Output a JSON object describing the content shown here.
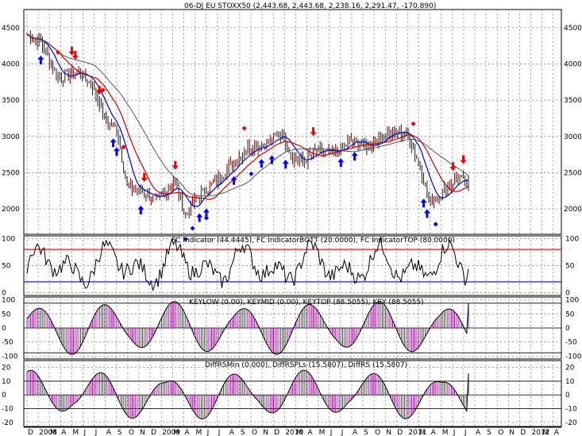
{
  "chart_data": [
    {
      "type": "candlestick",
      "title": "06-DJ EU STOXX50 (2,443.68, 2,443.68, 2,238.16, 2,291.47, -170.890)",
      "yticks": [
        2000,
        2500,
        3000,
        3500,
        4000,
        4500
      ],
      "ylim": [
        1650,
        4750
      ],
      "price_path": [
        [
          0,
          4400
        ],
        [
          8,
          4300
        ],
        [
          18,
          3800
        ],
        [
          30,
          3900
        ],
        [
          38,
          3700
        ],
        [
          46,
          3200
        ],
        [
          52,
          3100
        ],
        [
          58,
          2300
        ],
        [
          66,
          2250
        ],
        [
          76,
          2100
        ],
        [
          85,
          2400
        ],
        [
          92,
          1900
        ],
        [
          98,
          2150
        ],
        [
          108,
          2350
        ],
        [
          118,
          2600
        ],
        [
          128,
          2850
        ],
        [
          138,
          2900
        ],
        [
          148,
          3050
        ],
        [
          154,
          2700
        ],
        [
          160,
          2650
        ],
        [
          168,
          2800
        ],
        [
          178,
          2750
        ],
        [
          188,
          2950
        ],
        [
          198,
          2850
        ],
        [
          208,
          3050
        ],
        [
          220,
          3050
        ],
        [
          228,
          2600
        ],
        [
          233,
          2100
        ],
        [
          240,
          2200
        ],
        [
          250,
          2450
        ],
        [
          256,
          2290
        ]
      ],
      "signals": {
        "up_arrows": [
          8,
          50,
          52,
          66,
          100,
          104,
          120,
          136,
          142,
          150,
          182,
          190,
          230,
          232
        ],
        "down_arrows": [
          26,
          28,
          42,
          68,
          86,
          166,
          247,
          253
        ],
        "up_diamonds": [
          92,
          96,
          104,
          130,
          237
        ],
        "down_diamonds": [
          18,
          44,
          56,
          126,
          224
        ]
      }
    },
    {
      "type": "line",
      "title": "FC Indicator (44.4445), FC IndicatorBOTT (20.0000), FC IndicatorTOP (80.0000)",
      "yticks": [
        0,
        50,
        100
      ],
      "ylim": [
        -5,
        105
      ],
      "hlines": [
        {
          "name": "FC IndicatorTOP",
          "value": 80,
          "color": "#e00000"
        },
        {
          "name": "FC IndicatorBOTT",
          "value": 20,
          "color": "#0000cc"
        }
      ],
      "last_value": 44.4445
    },
    {
      "type": "histogram",
      "title": "KEYLOW (0.00), KEYMID (0.00), KEYTOP (88.5055), KEY (88.5055)",
      "yticks": [
        -100,
        -50,
        0,
        50,
        100
      ],
      "ylim": [
        -110,
        110
      ],
      "hlines": [
        {
          "value": 0
        },
        {
          "value": 88
        },
        {
          "value": -88
        }
      ],
      "last_value": 88.5055
    },
    {
      "type": "histogram",
      "title": "DiffRSMin (0.000), DiffRSPLs (15.5807), DiffRS (15.5807)",
      "yticks": [
        -20,
        -10,
        0,
        10,
        20
      ],
      "ylim": [
        -23,
        25
      ],
      "hlines": [
        {
          "value": 0
        },
        {
          "value": 10
        },
        {
          "value": -10
        }
      ],
      "last_value": 15.5807
    }
  ],
  "x_axis": {
    "labels": [
      "D",
      "2008",
      "M",
      "A",
      "M",
      "J",
      "J",
      "A",
      "S",
      "O",
      "N",
      "D",
      "2009",
      "M",
      "A",
      "M",
      "J",
      "J",
      "A",
      "S",
      "O",
      "N",
      "D",
      "2010",
      "M",
      "A",
      "M",
      "J",
      "J",
      "A",
      "S",
      "O",
      "N",
      "D",
      "2011",
      "M",
      "A",
      "M",
      "J",
      "J",
      "A",
      "S",
      "O",
      "N",
      "D",
      "2012",
      "M",
      "A"
    ]
  },
  "colors": {
    "grid": "#777777",
    "up": "#0000ee",
    "down": "#ee0000",
    "ma1": "#0000cc",
    "ma2": "#cc0000",
    "ma3": "#333333",
    "frame": "#000000"
  }
}
